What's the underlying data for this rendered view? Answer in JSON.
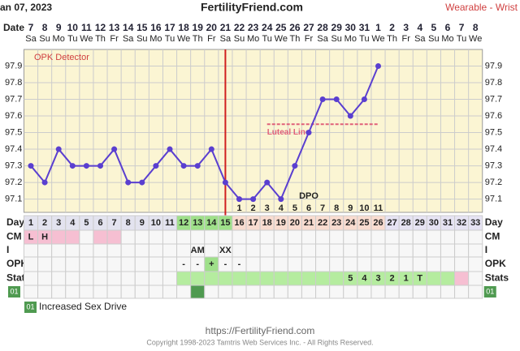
{
  "header": {
    "date": "an 07, 2023",
    "site": "FertilityFriend.com",
    "method": "Wearable - Wrist"
  },
  "chart_data": {
    "type": "line",
    "x_label": "Date",
    "detector_label": "OPK Detector",
    "categories": [
      "7",
      "8",
      "9",
      "10",
      "11",
      "12",
      "13",
      "14",
      "15",
      "16",
      "17",
      "18",
      "19",
      "20",
      "21",
      "22",
      "23",
      "24",
      "25",
      "26",
      "27",
      "28",
      "29",
      "30",
      "31",
      "1",
      "2",
      "3",
      "4",
      "5",
      "6",
      "7",
      "8"
    ],
    "weekdays": [
      "Sa",
      "Su",
      "Mo",
      "Tu",
      "We",
      "Th",
      "Fr",
      "Sa",
      "Su",
      "Mo",
      "Tu",
      "We",
      "Th",
      "Fr",
      "Sa",
      "Su",
      "Mo",
      "Tu",
      "We",
      "Th",
      "Fr",
      "Sa",
      "Su",
      "Mo",
      "Tu",
      "We",
      "Th",
      "Fr",
      "Sa",
      "Su",
      "Mo",
      "Tu",
      "We"
    ],
    "series": [
      {
        "color": "#5a3fd0",
        "values": [
          97.3,
          97.2,
          97.4,
          97.3,
          97.3,
          97.3,
          97.4,
          97.2,
          97.2,
          97.3,
          97.4,
          97.3,
          97.3,
          97.4,
          97.2,
          97.1,
          97.1,
          97.2,
          97.1,
          97.3,
          97.5,
          97.7,
          97.7,
          97.6,
          97.7,
          97.9,
          null,
          null,
          null,
          null,
          null,
          null,
          null
        ]
      }
    ],
    "ylim": [
      97.02,
      98.0
    ],
    "yticks": [
      97.1,
      97.2,
      97.3,
      97.4,
      97.5,
      97.6,
      97.7,
      97.8,
      97.9
    ],
    "grid": true,
    "coverline": {
      "value": 97.55,
      "label": "Luteal Line",
      "color": "#e0607a"
    },
    "ovulation_day": 15,
    "dpo": {
      "label": "DPO",
      "values": [
        1,
        2,
        3,
        4,
        5,
        6,
        7,
        8,
        9,
        10,
        11
      ]
    }
  },
  "table": {
    "row_labels": [
      "Day",
      "CM",
      "I",
      "OPK",
      "Stats"
    ],
    "days": [
      1,
      2,
      3,
      4,
      5,
      6,
      7,
      8,
      9,
      10,
      11,
      12,
      13,
      14,
      15,
      16,
      17,
      18,
      19,
      20,
      21,
      22,
      23,
      24,
      25,
      26,
      27,
      28,
      29,
      30,
      31,
      32,
      33
    ],
    "cm": [
      "L",
      "H",
      null,
      null,
      null,
      null,
      null,
      null,
      null,
      null,
      null,
      null,
      null,
      null,
      null,
      null,
      null,
      null,
      null,
      null,
      null,
      null,
      null,
      null,
      null,
      null,
      null,
      null,
      null,
      null,
      null,
      null,
      null
    ],
    "i": [
      null,
      null,
      null,
      null,
      null,
      null,
      null,
      null,
      null,
      null,
      null,
      null,
      "AM",
      null,
      "XX",
      null,
      null,
      null,
      null,
      null,
      null,
      null,
      null,
      null,
      null,
      null,
      null,
      null,
      null,
      null,
      null,
      null,
      null
    ],
    "opk": [
      null,
      null,
      null,
      null,
      null,
      null,
      null,
      null,
      null,
      null,
      null,
      "-",
      "-",
      "+",
      "-",
      "-",
      null,
      null,
      null,
      null,
      null,
      null,
      null,
      null,
      null,
      null,
      null,
      null,
      null,
      null,
      null,
      null,
      null
    ],
    "stats": [
      null,
      null,
      null,
      null,
      null,
      null,
      null,
      null,
      null,
      null,
      null,
      null,
      null,
      null,
      null,
      null,
      null,
      null,
      null,
      null,
      null,
      null,
      null,
      "5",
      "4",
      "3",
      "2",
      "1",
      "T",
      null,
      null,
      null,
      null
    ]
  },
  "legend": {
    "code": "01",
    "label": "Increased Sex Drive"
  },
  "footer": {
    "url": "https://FertilityFriend.com",
    "copyright": "Copyright 1998-2023 Tamtris Web Services Inc. - All Rights Reserved."
  }
}
